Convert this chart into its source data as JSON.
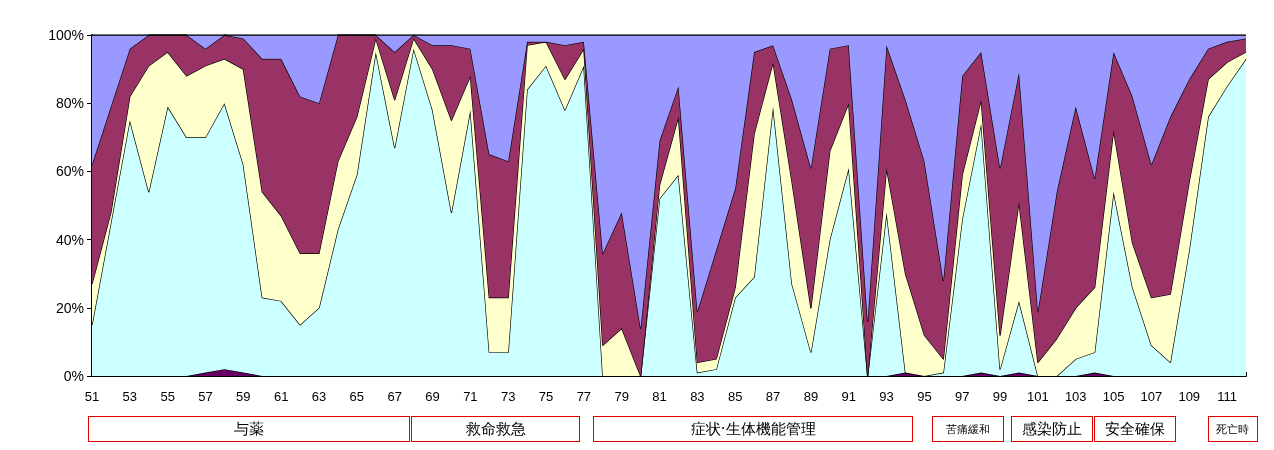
{
  "chart_data": {
    "type": "area",
    "stacked": true,
    "grid": false,
    "marker": "none",
    "categories": [
      "51",
      null,
      "53",
      null,
      "55",
      null,
      "57",
      null,
      "59",
      null,
      "61",
      null,
      "63",
      null,
      "65",
      null,
      "67",
      null,
      "69",
      null,
      "71",
      null,
      "73",
      null,
      "75",
      null,
      "77",
      null,
      "79",
      null,
      "81",
      null,
      "83",
      null,
      "85",
      null,
      "87",
      null,
      "89",
      null,
      "91",
      null,
      "93",
      null,
      "95",
      null,
      "97",
      null,
      "99",
      null,
      "101",
      null,
      "103",
      null,
      "105",
      null,
      "107",
      null,
      "109",
      null,
      "111",
      null
    ],
    "ylim": [
      0,
      100
    ],
    "yticks": [
      {
        "value": 0,
        "label": "0%"
      },
      {
        "value": 20,
        "label": "20%"
      },
      {
        "value": 40,
        "label": "40%"
      },
      {
        "value": 60,
        "label": "60%"
      },
      {
        "value": 80,
        "label": "80%"
      },
      {
        "value": 100,
        "label": "100%"
      }
    ],
    "series": [
      {
        "color": "#660066",
        "values": [
          0,
          0,
          0,
          0,
          0,
          0,
          1,
          2,
          1,
          0,
          0,
          0,
          0,
          0,
          0,
          0,
          0,
          0,
          0,
          0,
          0,
          0,
          0,
          0,
          0,
          0,
          0,
          0,
          0,
          0,
          0,
          0,
          0,
          0,
          0,
          0,
          0,
          0,
          0,
          0,
          0,
          0,
          0,
          1,
          0,
          0,
          0,
          1,
          0,
          1,
          0,
          0,
          0,
          1,
          0,
          0,
          0,
          0,
          0,
          0,
          0,
          0
        ]
      },
      {
        "color": "#ccffff",
        "values": [
          15,
          45,
          75,
          54,
          79,
          70,
          69,
          78,
          61,
          23,
          22,
          15,
          20,
          43,
          59,
          95,
          67,
          96,
          78,
          48,
          78,
          7,
          7,
          84,
          91,
          78,
          91,
          0,
          0,
          0,
          52,
          59,
          1,
          2,
          23,
          29,
          79,
          27,
          7,
          40,
          61,
          0,
          48,
          0,
          0,
          1,
          46,
          73,
          2,
          21,
          0,
          0,
          5,
          6,
          54,
          26,
          9,
          4,
          37,
          76,
          85,
          93
        ]
      },
      {
        "color": "#ffffcc",
        "values": [
          12,
          3,
          7,
          37,
          16,
          18,
          21,
          13,
          28,
          31,
          25,
          21,
          16,
          20,
          17,
          4,
          14,
          3,
          12,
          27,
          10,
          16,
          16,
          13,
          7,
          9,
          5,
          9,
          14,
          0,
          4,
          17,
          3,
          3,
          3,
          42,
          13,
          30,
          13,
          26,
          19,
          0,
          13,
          29,
          12,
          4,
          13,
          7,
          10,
          29,
          4,
          11,
          15,
          19,
          18,
          13,
          14,
          20,
          20,
          11,
          7,
          2
        ]
      },
      {
        "color": "#993366",
        "values": [
          35,
          31,
          14,
          9,
          5,
          12,
          5,
          7,
          9,
          39,
          46,
          46,
          44,
          37,
          24,
          1,
          14,
          1,
          7,
          22,
          8,
          42,
          40,
          1,
          0,
          10,
          2,
          27,
          34,
          14,
          13,
          9,
          15,
          32,
          29,
          24,
          5,
          24,
          41,
          30,
          17,
          16,
          36,
          51,
          51,
          23,
          29,
          14,
          49,
          38,
          15,
          43,
          59,
          32,
          23,
          43,
          39,
          52,
          30,
          9,
          6,
          4
        ]
      },
      {
        "color": "#9999ff",
        "values": [
          38,
          21,
          4,
          0,
          0,
          0,
          4,
          0,
          1,
          7,
          7,
          18,
          20,
          0,
          0,
          0,
          5,
          0,
          3,
          3,
          4,
          35,
          37,
          2,
          2,
          3,
          2,
          64,
          52,
          86,
          31,
          15,
          81,
          63,
          45,
          5,
          3,
          19,
          39,
          4,
          3,
          84,
          3,
          19,
          37,
          72,
          12,
          5,
          39,
          11,
          81,
          46,
          21,
          42,
          5,
          18,
          38,
          24,
          13,
          4,
          2,
          1
        ]
      }
    ],
    "annotations": [
      "与薬",
      "救命救急",
      "症状·生体機能管理",
      "苦痛緩和",
      "感染防止",
      "安全確保",
      "死亡時"
    ]
  }
}
